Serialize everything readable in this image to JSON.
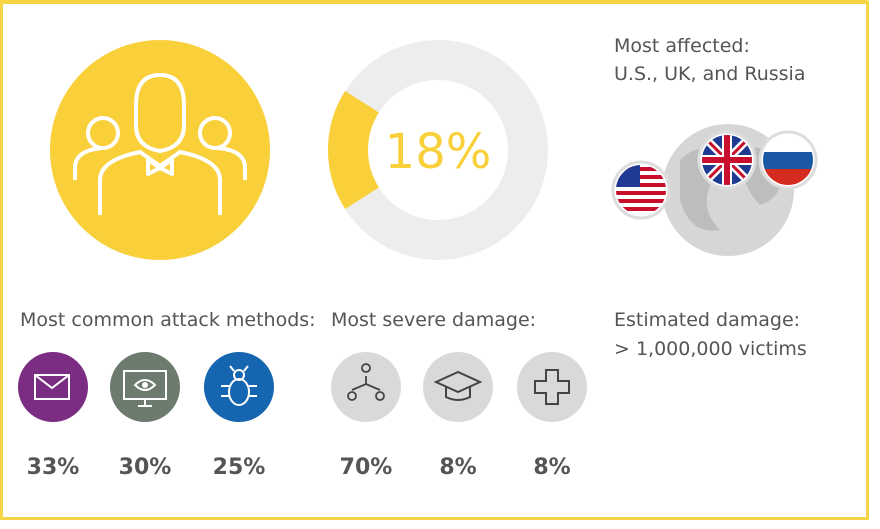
{
  "donut": {
    "value": 18,
    "label": "18%",
    "color": "#f9cf3a",
    "track": "#eeeded"
  },
  "affected": {
    "heading": "Most affected:",
    "countries": "U.S., UK, and Russia"
  },
  "attack_methods": {
    "heading": "Most common attack methods:",
    "values": [
      "33%",
      "30%",
      "25%"
    ]
  },
  "severe_damage": {
    "heading": "Most severe damage:",
    "values": [
      "70%",
      "8%",
      "8%"
    ]
  },
  "estimated_damage": {
    "heading": "Estimated damage:",
    "victims": "> 1,000,000 victims"
  }
}
